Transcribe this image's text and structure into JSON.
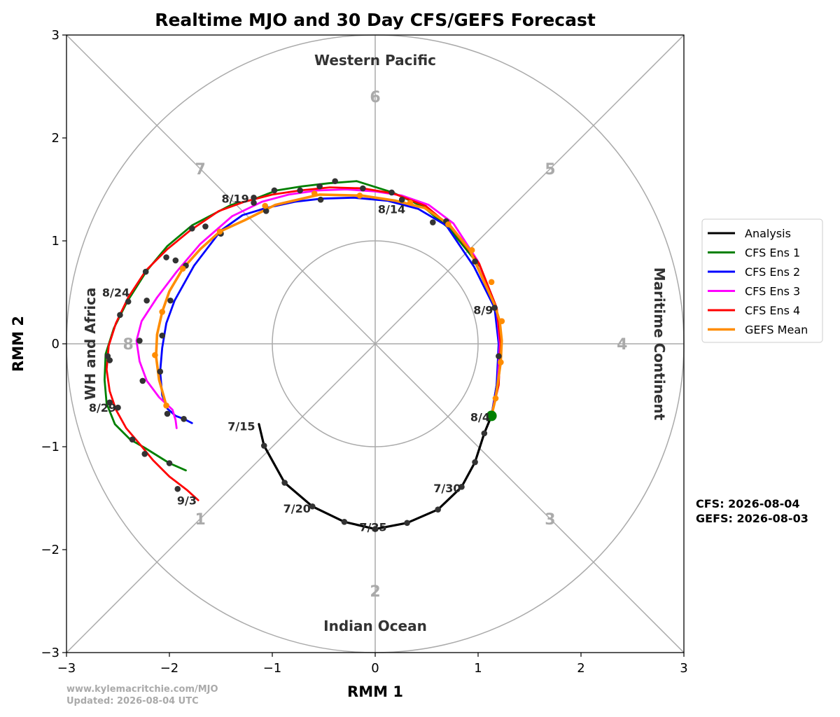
{
  "chart_data": {
    "type": "line",
    "title": "Realtime MJO and 30 Day CFS/GEFS Forecast",
    "xlabel": "RMM 1",
    "ylabel": "RMM 2",
    "xlim": [
      -3,
      3
    ],
    "ylim": [
      -3,
      3
    ],
    "xticks": [
      "−3",
      "−2",
      "−1",
      "0",
      "1",
      "2",
      "3"
    ],
    "yticks": [
      "−3",
      "−2",
      "−1",
      "0",
      "1",
      "2",
      "3"
    ],
    "grid": "unit circle, radius 3 circle, axes and diagonals",
    "regions": {
      "top": "Western Pacific",
      "bottom": "Indian Ocean",
      "left": "WH and Africa",
      "right": "Maritime Continent"
    },
    "phases": [
      {
        "label": "1",
        "x": -1.7,
        "y": -1.7
      },
      {
        "label": "2",
        "x": 0.0,
        "y": -2.4
      },
      {
        "label": "3",
        "x": 1.7,
        "y": -1.7
      },
      {
        "label": "4",
        "x": 2.4,
        "y": 0.0
      },
      {
        "label": "5",
        "x": 1.7,
        "y": 1.7
      },
      {
        "label": "6",
        "x": 0.0,
        "y": 2.4
      },
      {
        "label": "7",
        "x": -1.7,
        "y": 1.7
      },
      {
        "label": "8",
        "x": -2.4,
        "y": 0.0
      }
    ],
    "series": [
      {
        "name": "Analysis",
        "color": "#000000",
        "x": [
          -1.13,
          -1.08,
          -0.88,
          -0.61,
          -0.3,
          0.0,
          0.31,
          0.61,
          0.84,
          0.97,
          1.06,
          1.13
        ],
        "y": [
          -0.78,
          -0.99,
          -1.35,
          -1.58,
          -1.73,
          -1.8,
          -1.74,
          -1.61,
          -1.39,
          -1.15,
          -0.87,
          -0.7
        ]
      },
      {
        "name": "CFS Ens 1",
        "color": "#008000",
        "x": [
          1.13,
          1.18,
          1.22,
          1.18,
          1.02,
          0.72,
          0.47,
          0.17,
          -0.18,
          -0.45,
          -0.71,
          -0.96,
          -1.19,
          -1.4,
          -1.78,
          -2.02,
          -2.22,
          -2.41,
          -2.54,
          -2.62,
          -2.63,
          -2.61,
          -2.53,
          -2.38,
          -2.24,
          -2.0,
          -1.84
        ],
        "y": [
          -0.7,
          -0.4,
          0.0,
          0.35,
          0.75,
          1.12,
          1.33,
          1.47,
          1.58,
          1.56,
          1.53,
          1.49,
          1.4,
          1.35,
          1.15,
          0.95,
          0.71,
          0.41,
          0.15,
          -0.1,
          -0.35,
          -0.58,
          -0.78,
          -0.93,
          -1.01,
          -1.16,
          -1.23
        ]
      },
      {
        "name": "CFS Ens 2",
        "color": "#0000ff",
        "x": [
          1.13,
          1.18,
          1.2,
          1.16,
          0.96,
          0.69,
          0.42,
          0.12,
          -0.21,
          -0.52,
          -0.78,
          -1.06,
          -1.29,
          -1.5,
          -1.76,
          -1.95,
          -2.03,
          -2.07,
          -2.09,
          -2.07,
          -2.02,
          -1.94,
          -1.86,
          -1.78
        ],
        "y": [
          -0.7,
          -0.4,
          0.0,
          0.35,
          0.75,
          1.15,
          1.31,
          1.39,
          1.42,
          1.41,
          1.38,
          1.32,
          1.25,
          1.1,
          0.76,
          0.42,
          0.2,
          -0.04,
          -0.27,
          -0.5,
          -0.63,
          -0.7,
          -0.73,
          -0.77
        ]
      },
      {
        "name": "CFS Ens 3",
        "color": "#ff00ff",
        "x": [
          1.13,
          1.19,
          1.21,
          1.18,
          1.0,
          0.76,
          0.52,
          0.26,
          0.0,
          -0.28,
          -0.56,
          -0.84,
          -1.1,
          -1.39,
          -1.7,
          -1.93,
          -2.12,
          -2.27,
          -2.32,
          -2.29,
          -2.22,
          -2.1,
          -1.97,
          -1.94,
          -1.93
        ],
        "y": [
          -0.7,
          -0.4,
          0.0,
          0.35,
          0.8,
          1.17,
          1.35,
          1.44,
          1.48,
          1.5,
          1.49,
          1.45,
          1.38,
          1.24,
          0.97,
          0.7,
          0.45,
          0.22,
          0.03,
          -0.17,
          -0.36,
          -0.52,
          -0.64,
          -0.74,
          -0.82
        ]
      },
      {
        "name": "CFS Ens 4",
        "color": "#ff0000",
        "x": [
          1.13,
          1.2,
          1.22,
          1.18,
          1.01,
          0.73,
          0.49,
          0.18,
          -0.12,
          -0.44,
          -0.73,
          -1.0,
          -1.27,
          -1.52,
          -1.8,
          -2.02,
          -2.23,
          -2.4,
          -2.52,
          -2.59,
          -2.61,
          -2.58,
          -2.52,
          -2.42,
          -2.3,
          -2.16,
          -2.0,
          -1.83,
          -1.72
        ],
        "y": [
          -0.7,
          -0.4,
          0.0,
          0.35,
          0.78,
          1.14,
          1.34,
          1.46,
          1.51,
          1.52,
          1.49,
          1.45,
          1.38,
          1.29,
          1.1,
          0.92,
          0.71,
          0.45,
          0.2,
          -0.02,
          -0.25,
          -0.46,
          -0.64,
          -0.82,
          -0.96,
          -1.13,
          -1.29,
          -1.42,
          -1.52
        ]
      },
      {
        "name": "GEFS Mean",
        "color": "#ff8c00",
        "x": [
          1.13,
          1.17,
          1.22,
          1.23,
          1.21,
          1.16,
          1.06,
          0.92,
          0.72,
          0.48,
          0.2,
          -0.13,
          -0.54,
          -0.97,
          -1.27,
          -1.51,
          -1.7,
          -1.87,
          -2.0,
          -2.07,
          -2.12,
          -2.13,
          -2.1,
          -2.03
        ],
        "y": [
          -0.7,
          -0.53,
          -0.18,
          0.03,
          0.22,
          0.38,
          0.6,
          0.91,
          1.16,
          1.32,
          1.39,
          1.44,
          1.45,
          1.35,
          1.2,
          1.09,
          0.92,
          0.73,
          0.51,
          0.31,
          0.09,
          -0.12,
          -0.35,
          -0.6
        ]
      }
    ],
    "markers": {
      "color": "#333333",
      "points": [
        {
          "x": -1.08,
          "y": -0.99
        },
        {
          "x": -0.88,
          "y": -1.35
        },
        {
          "x": -0.61,
          "y": -1.58
        },
        {
          "x": -0.3,
          "y": -1.73
        },
        {
          "x": 0.0,
          "y": -1.8
        },
        {
          "x": 0.31,
          "y": -1.74
        },
        {
          "x": 0.61,
          "y": -1.61
        },
        {
          "x": 0.84,
          "y": -1.39
        },
        {
          "x": 0.97,
          "y": -1.15
        },
        {
          "x": 1.06,
          "y": -0.87
        },
        {
          "x": 1.2,
          "y": -0.12
        },
        {
          "x": 1.16,
          "y": 0.35
        },
        {
          "x": 0.97,
          "y": 0.8
        },
        {
          "x": 0.69,
          "y": 1.19
        },
        {
          "x": 0.56,
          "y": 1.18
        },
        {
          "x": 0.26,
          "y": 1.4
        },
        {
          "x": 0.16,
          "y": 1.47
        },
        {
          "x": -0.12,
          "y": 1.51
        },
        {
          "x": -0.39,
          "y": 1.58
        },
        {
          "x": -0.54,
          "y": 1.53
        },
        {
          "x": -0.73,
          "y": 1.49
        },
        {
          "x": -0.98,
          "y": 1.49
        },
        {
          "x": -1.18,
          "y": 1.42
        },
        {
          "x": -1.18,
          "y": 1.37
        },
        {
          "x": -0.53,
          "y": 1.4
        },
        {
          "x": -1.06,
          "y": 1.29
        },
        {
          "x": -1.5,
          "y": 1.07
        },
        {
          "x": -1.65,
          "y": 1.14
        },
        {
          "x": -1.78,
          "y": 1.12
        },
        {
          "x": -1.94,
          "y": 0.81
        },
        {
          "x": -2.03,
          "y": 0.84
        },
        {
          "x": -1.84,
          "y": 0.76
        },
        {
          "x": -2.23,
          "y": 0.7
        },
        {
          "x": -2.4,
          "y": 0.41
        },
        {
          "x": -2.48,
          "y": 0.28
        },
        {
          "x": -1.99,
          "y": 0.42
        },
        {
          "x": -2.22,
          "y": 0.42
        },
        {
          "x": -2.07,
          "y": 0.08
        },
        {
          "x": -2.29,
          "y": 0.03
        },
        {
          "x": -2.6,
          "y": -0.12
        },
        {
          "x": -2.58,
          "y": -0.16
        },
        {
          "x": -2.09,
          "y": -0.27
        },
        {
          "x": -2.26,
          "y": -0.36
        },
        {
          "x": -2.58,
          "y": -0.57
        },
        {
          "x": -2.5,
          "y": -0.62
        },
        {
          "x": -2.02,
          "y": -0.68
        },
        {
          "x": -1.86,
          "y": -0.73
        },
        {
          "x": -2.36,
          "y": -0.93
        },
        {
          "x": -2.24,
          "y": -1.07
        },
        {
          "x": -2.0,
          "y": -1.16
        },
        {
          "x": -1.92,
          "y": -1.41
        }
      ],
      "gefs_points": [
        {
          "x": 1.17,
          "y": -0.53
        },
        {
          "x": 1.22,
          "y": -0.18
        },
        {
          "x": 1.23,
          "y": 0.22
        },
        {
          "x": 1.13,
          "y": 0.6
        },
        {
          "x": 0.94,
          "y": 0.91
        },
        {
          "x": 0.71,
          "y": 1.16
        },
        {
          "x": 0.34,
          "y": 1.37
        },
        {
          "x": -0.15,
          "y": 1.44
        },
        {
          "x": -0.59,
          "y": 1.46
        },
        {
          "x": -1.07,
          "y": 1.34
        },
        {
          "x": -1.51,
          "y": 1.09
        },
        {
          "x": -1.87,
          "y": 0.73
        },
        {
          "x": -2.07,
          "y": 0.31
        },
        {
          "x": -2.14,
          "y": -0.11
        },
        {
          "x": -2.03,
          "y": -0.6
        }
      ],
      "start": {
        "x": 1.13,
        "y": -0.7,
        "color": "#008000"
      }
    },
    "date_labels": [
      {
        "text": "7/15",
        "x": -1.3,
        "y": -0.8
      },
      {
        "text": "7/20",
        "x": -0.76,
        "y": -1.6
      },
      {
        "text": "7/25",
        "x": -0.02,
        "y": -1.78
      },
      {
        "text": "7/30",
        "x": 0.7,
        "y": -1.4
      },
      {
        "text": "8/4",
        "x": 1.02,
        "y": -0.71
      },
      {
        "text": "8/9",
        "x": 1.05,
        "y": 0.33
      },
      {
        "text": "8/14",
        "x": 0.16,
        "y": 1.31
      },
      {
        "text": "8/19",
        "x": -1.36,
        "y": 1.41
      },
      {
        "text": "8/24",
        "x": -2.52,
        "y": 0.5
      },
      {
        "text": "8/29",
        "x": -2.65,
        "y": -0.62
      },
      {
        "text": "9/3",
        "x": -1.83,
        "y": -1.52
      }
    ],
    "legend": {
      "position": "center-right",
      "entries": [
        "Analysis",
        "CFS Ens 1",
        "CFS Ens 2",
        "CFS Ens 3",
        "CFS Ens 4",
        "GEFS Mean"
      ]
    },
    "init_text": [
      "CFS: 2026-08-04",
      "GEFS: 2026-08-03"
    ],
    "footer": [
      "www.kylemacritchie.com/MJO",
      "Updated: 2026-08-04 UTC"
    ]
  }
}
